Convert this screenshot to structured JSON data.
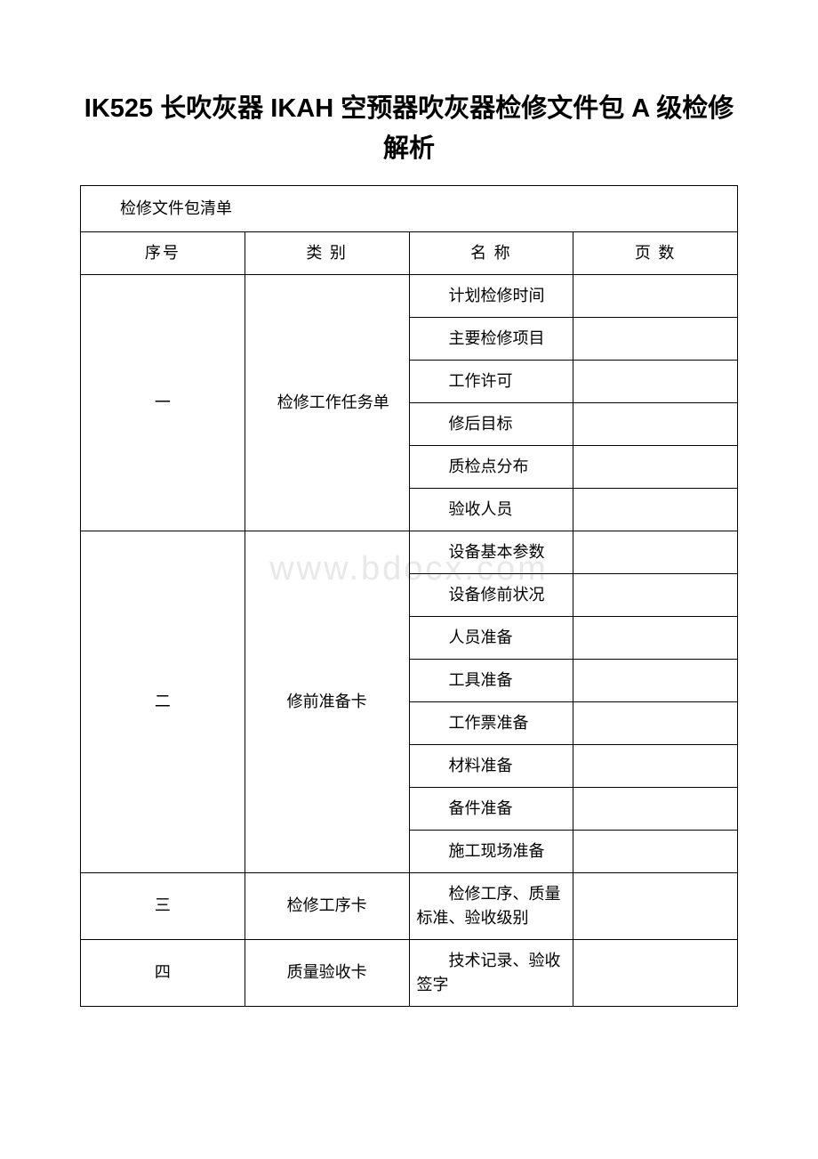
{
  "document": {
    "title": "IK525 长吹灰器 IKAH 空预器吹灰器检修文件包 A 级检修解析",
    "watermark": "www.bdocx.com",
    "background_color": "#ffffff",
    "text_color": "#000000",
    "border_color": "#000000",
    "title_fontsize": 29,
    "body_fontsize": 18
  },
  "table": {
    "list_title": "检修文件包清单",
    "columns": {
      "seq": "序号",
      "category": "类 别",
      "name": "名 称",
      "pages": "页 数"
    },
    "sections": [
      {
        "seq": "一",
        "category": "检修工作任务单",
        "items": [
          "计划检修时间",
          "主要检修项目",
          "工作许可",
          "修后目标",
          "质检点分布",
          "验收人员"
        ]
      },
      {
        "seq": "二",
        "category": "修前准备卡",
        "items": [
          "设备基本参数",
          "设备修前状况",
          "人员准备",
          "工具准备",
          "工作票准备",
          "材料准备",
          "备件准备",
          "施工现场准备"
        ]
      },
      {
        "seq": "三",
        "category": "检修工序卡",
        "items": [
          "检修工序、质量标准、验收级别"
        ]
      },
      {
        "seq": "四",
        "category": "质量验收卡",
        "items": [
          "技术记录、验收签字"
        ]
      }
    ]
  }
}
